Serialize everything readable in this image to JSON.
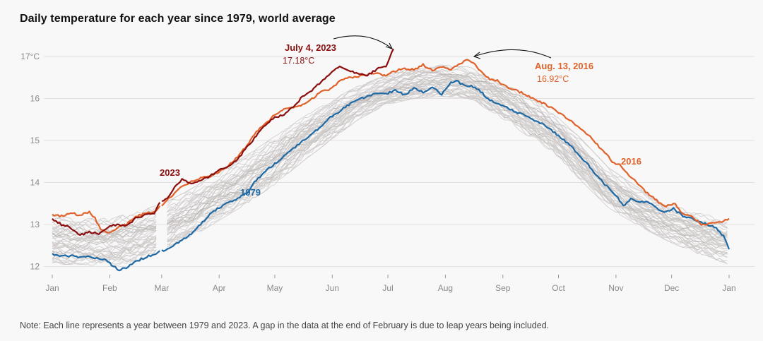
{
  "title": "Daily temperature for each year since 1979, world average",
  "note": "Note: Each line represents a year between 1979 and 2023. A gap in the data at the end of February is due to leap years being included.",
  "chart_data": {
    "type": "line",
    "title": "Daily temperature for each year since 1979, world average",
    "xlabel": "",
    "ylabel": "",
    "x_unit": "day of year",
    "xlim": [
      0,
      365
    ],
    "ylim": [
      11.9,
      17.3
    ],
    "grid": true,
    "y_ticks": [
      {
        "value": 12,
        "label": "12"
      },
      {
        "value": 13,
        "label": "13"
      },
      {
        "value": 14,
        "label": "14"
      },
      {
        "value": 15,
        "label": "15"
      },
      {
        "value": 16,
        "label": "16"
      },
      {
        "value": 17,
        "label": "17°C"
      }
    ],
    "x_ticks": [
      {
        "value": 0,
        "label": "Jan"
      },
      {
        "value": 31,
        "label": "Feb"
      },
      {
        "value": 59,
        "label": "Mar"
      },
      {
        "value": 90,
        "label": "Apr"
      },
      {
        "value": 120,
        "label": "May"
      },
      {
        "value": 151,
        "label": "Jun"
      },
      {
        "value": 181,
        "label": "Jul"
      },
      {
        "value": 212,
        "label": "Aug"
      },
      {
        "value": 243,
        "label": "Sep"
      },
      {
        "value": 273,
        "label": "Oct"
      },
      {
        "value": 304,
        "label": "Nov"
      },
      {
        "value": 334,
        "label": "Dec"
      },
      {
        "value": 365,
        "label": "Jan"
      }
    ],
    "background_years": {
      "range": "1980-2022",
      "description": "Each gray line represents one year between 1979 and 2023",
      "color": "#cfcbcb",
      "envelope": {
        "x": [
          0,
          15,
          30,
          45,
          60,
          75,
          90,
          105,
          120,
          135,
          150,
          165,
          180,
          195,
          210,
          225,
          240,
          255,
          270,
          285,
          300,
          315,
          330,
          345,
          365
        ],
        "low": [
          12.05,
          12.05,
          12.0,
          12.1,
          12.4,
          12.7,
          13.1,
          13.5,
          13.95,
          14.5,
          15.0,
          15.5,
          15.85,
          16.0,
          16.05,
          16.0,
          15.6,
          15.15,
          14.7,
          14.05,
          13.4,
          13.0,
          12.65,
          12.35,
          12.05
        ],
        "high": [
          13.2,
          13.15,
          13.15,
          13.3,
          13.5,
          13.85,
          14.25,
          14.65,
          15.1,
          15.55,
          15.95,
          16.3,
          16.55,
          16.75,
          16.8,
          16.75,
          16.45,
          16.1,
          15.65,
          15.05,
          14.35,
          13.9,
          13.55,
          13.3,
          13.15
        ]
      }
    },
    "series": [
      {
        "name": "1979",
        "color": "#1f6aa5",
        "x": [
          0,
          5,
          10,
          15,
          20,
          25,
          30,
          33,
          36,
          40,
          45,
          50,
          55,
          58,
          60,
          65,
          70,
          75,
          80,
          85,
          90,
          95,
          100,
          105,
          110,
          115,
          120,
          125,
          130,
          135,
          140,
          145,
          150,
          155,
          160,
          165,
          170,
          175,
          180,
          185,
          190,
          195,
          200,
          205,
          210,
          215,
          218,
          222,
          226,
          230,
          235,
          240,
          245,
          250,
          255,
          260,
          265,
          270,
          275,
          280,
          285,
          290,
          295,
          300,
          305,
          308,
          312,
          316,
          320,
          325,
          330,
          335,
          340,
          345,
          350,
          355,
          358,
          362,
          365
        ],
        "values": [
          12.31,
          12.24,
          12.26,
          12.22,
          12.23,
          12.2,
          12.13,
          12.0,
          11.92,
          11.97,
          12.12,
          12.21,
          12.3,
          12.36,
          12.38,
          12.5,
          12.62,
          12.78,
          13.0,
          13.25,
          13.4,
          13.52,
          13.62,
          13.74,
          14.06,
          14.27,
          14.45,
          14.62,
          14.82,
          14.98,
          15.15,
          15.34,
          15.55,
          15.69,
          15.86,
          15.99,
          16.05,
          16.11,
          16.12,
          16.19,
          16.09,
          16.24,
          16.15,
          16.26,
          16.1,
          16.38,
          16.43,
          16.3,
          16.31,
          16.22,
          15.98,
          15.87,
          15.8,
          15.66,
          15.6,
          15.47,
          15.39,
          15.22,
          15.05,
          14.85,
          14.62,
          14.37,
          14.1,
          13.86,
          13.64,
          13.44,
          13.6,
          13.52,
          13.55,
          13.42,
          13.27,
          13.38,
          13.2,
          13.15,
          13.05,
          12.97,
          12.93,
          12.72,
          12.41
        ]
      },
      {
        "name": "2016",
        "color": "#e0622a",
        "x": [
          0,
          5,
          10,
          15,
          20,
          23,
          26,
          30,
          35,
          40,
          45,
          50,
          55,
          58,
          60,
          65,
          70,
          75,
          80,
          85,
          90,
          95,
          100,
          105,
          110,
          115,
          120,
          125,
          130,
          135,
          140,
          145,
          150,
          155,
          160,
          165,
          170,
          175,
          180,
          185,
          190,
          195,
          200,
          205,
          210,
          215,
          220,
          224,
          228,
          232,
          236,
          240,
          245,
          250,
          255,
          260,
          265,
          270,
          275,
          280,
          285,
          290,
          295,
          300,
          303,
          306,
          310,
          315,
          320,
          325,
          330,
          333,
          336,
          340,
          345,
          350,
          355,
          360,
          365
        ],
        "values": [
          13.24,
          13.2,
          13.28,
          13.22,
          13.3,
          13.15,
          12.9,
          12.8,
          12.92,
          13.0,
          13.2,
          13.26,
          13.3,
          13.42,
          13.5,
          13.7,
          13.9,
          14.02,
          14.1,
          14.15,
          14.25,
          14.4,
          14.62,
          14.88,
          15.2,
          15.4,
          15.62,
          15.75,
          15.78,
          15.85,
          15.99,
          16.15,
          16.23,
          16.41,
          16.49,
          16.52,
          16.58,
          16.6,
          16.55,
          16.65,
          16.72,
          16.68,
          16.8,
          16.66,
          16.74,
          16.7,
          16.82,
          16.92,
          16.8,
          16.6,
          16.45,
          16.42,
          16.28,
          16.2,
          16.1,
          15.97,
          15.88,
          15.76,
          15.6,
          15.45,
          15.28,
          15.1,
          14.85,
          14.62,
          14.45,
          14.43,
          14.23,
          14.0,
          13.78,
          13.6,
          13.42,
          13.48,
          13.48,
          13.25,
          13.2,
          13.0,
          13.02,
          13.05,
          13.14
        ]
      },
      {
        "name": "2023",
        "color": "#8b0f0f",
        "x": [
          0,
          5,
          10,
          15,
          20,
          25,
          30,
          35,
          40,
          45,
          50,
          55,
          58,
          62,
          65,
          70,
          75,
          80,
          85,
          90,
          95,
          100,
          105,
          110,
          115,
          120,
          125,
          130,
          135,
          140,
          145,
          150,
          155,
          160,
          165,
          170,
          175,
          180,
          184
        ],
        "values": [
          13.14,
          13.0,
          12.93,
          12.75,
          12.82,
          12.78,
          12.95,
          13.0,
          12.97,
          13.15,
          13.22,
          13.28,
          13.55,
          13.6,
          13.82,
          14.08,
          13.98,
          14.05,
          14.15,
          14.3,
          14.4,
          14.55,
          14.85,
          15.1,
          15.38,
          15.55,
          15.62,
          15.8,
          16.05,
          16.2,
          16.4,
          16.6,
          16.78,
          16.65,
          16.6,
          16.55,
          16.7,
          16.78,
          17.18
        ]
      }
    ],
    "annotations": [
      {
        "series": "2023",
        "date_label": "July 4, 2023",
        "value_label": "17.18°C",
        "x": 184,
        "y": 17.18
      },
      {
        "series": "2016",
        "date_label": "Aug. 13, 2016",
        "value_label": "16.92°C",
        "x": 224,
        "y": 16.92
      }
    ],
    "series_labels": [
      {
        "series": "2023",
        "label": "2023"
      },
      {
        "series": "1979",
        "label": "1979"
      },
      {
        "series": "2016",
        "label": "2016"
      }
    ]
  }
}
